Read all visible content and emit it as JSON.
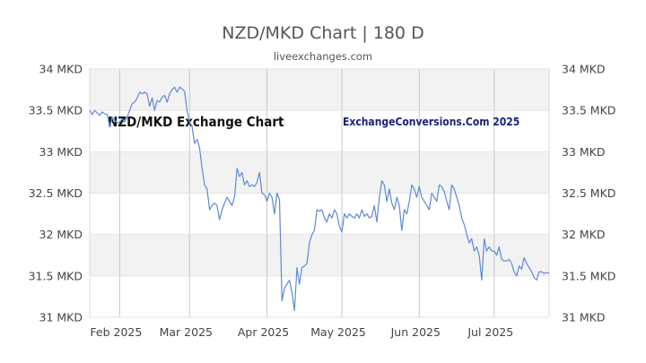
{
  "chart_data": {
    "type": "line",
    "title": "NZD/MKD Chart | 180 D",
    "subtitle": "liveexchanges.com",
    "watermark_left": "NZD/MKD Exchange Chart",
    "watermark_right": "ExchangeConversions.Com 2025",
    "ylim": [
      31,
      34
    ],
    "y_ticks": [
      {
        "value": 34,
        "label": "34 MKD"
      },
      {
        "value": 33.5,
        "label": "33.5 MKD"
      },
      {
        "value": 33,
        "label": "33 MKD"
      },
      {
        "value": 32.5,
        "label": "32.5 MKD"
      },
      {
        "value": 32,
        "label": "32 MKD"
      },
      {
        "value": 31.5,
        "label": "31.5 MKD"
      },
      {
        "value": 31,
        "label": "31 MKD"
      }
    ],
    "xlim": [
      "2025-01-20",
      "2025-07-23"
    ],
    "x_ticks": [
      {
        "date": "2025-02-01",
        "label": "Feb 2025"
      },
      {
        "date": "2025-03-01",
        "label": "Mar 2025"
      },
      {
        "date": "2025-04-01",
        "label": "Apr 2025"
      },
      {
        "date": "2025-05-01",
        "label": "May 2025"
      },
      {
        "date": "2025-06-01",
        "label": "Jun 2025"
      },
      {
        "date": "2025-07-01",
        "label": "Jul 2025"
      }
    ],
    "grid": true,
    "line_color": "#5b8ad6",
    "series": [
      {
        "points": [
          [
            "2025-01-20",
            33.5
          ],
          [
            "2025-01-21",
            33.45
          ],
          [
            "2025-01-22",
            33.5
          ],
          [
            "2025-01-23",
            33.47
          ],
          [
            "2025-01-24",
            33.44
          ],
          [
            "2025-01-25",
            33.48
          ],
          [
            "2025-01-26",
            33.46
          ],
          [
            "2025-01-27",
            33.45
          ],
          [
            "2025-01-28",
            33.3
          ],
          [
            "2025-01-29",
            33.42
          ],
          [
            "2025-01-30",
            33.38
          ],
          [
            "2025-01-31",
            33.35
          ],
          [
            "2025-02-01",
            33.36
          ],
          [
            "2025-02-02",
            33.4
          ],
          [
            "2025-02-03",
            33.36
          ],
          [
            "2025-02-04",
            33.42
          ],
          [
            "2025-02-05",
            33.5
          ],
          [
            "2025-02-06",
            33.58
          ],
          [
            "2025-02-07",
            33.6
          ],
          [
            "2025-02-08",
            33.65
          ],
          [
            "2025-02-09",
            33.72
          ],
          [
            "2025-02-10",
            33.7
          ],
          [
            "2025-02-11",
            33.72
          ],
          [
            "2025-02-12",
            33.7
          ],
          [
            "2025-02-13",
            33.55
          ],
          [
            "2025-02-14",
            33.65
          ],
          [
            "2025-02-15",
            33.5
          ],
          [
            "2025-02-16",
            33.62
          ],
          [
            "2025-02-17",
            33.6
          ],
          [
            "2025-02-18",
            33.66
          ],
          [
            "2025-02-19",
            33.68
          ],
          [
            "2025-02-20",
            33.6
          ],
          [
            "2025-02-21",
            33.7
          ],
          [
            "2025-02-22",
            33.75
          ],
          [
            "2025-02-23",
            33.78
          ],
          [
            "2025-02-24",
            33.72
          ],
          [
            "2025-02-25",
            33.78
          ],
          [
            "2025-02-26",
            33.76
          ],
          [
            "2025-02-27",
            33.73
          ],
          [
            "2025-02-28",
            33.5
          ],
          [
            "2025-03-01",
            33.35
          ],
          [
            "2025-03-02",
            33.3
          ],
          [
            "2025-03-03",
            33.1
          ],
          [
            "2025-03-04",
            33.15
          ],
          [
            "2025-03-05",
            33.05
          ],
          [
            "2025-03-06",
            32.8
          ],
          [
            "2025-03-07",
            32.6
          ],
          [
            "2025-03-08",
            32.55
          ],
          [
            "2025-03-09",
            32.3
          ],
          [
            "2025-03-10",
            32.35
          ],
          [
            "2025-03-11",
            32.38
          ],
          [
            "2025-03-12",
            32.35
          ],
          [
            "2025-03-13",
            32.18
          ],
          [
            "2025-03-14",
            32.3
          ],
          [
            "2025-03-15",
            32.38
          ],
          [
            "2025-03-16",
            32.45
          ],
          [
            "2025-03-17",
            32.4
          ],
          [
            "2025-03-18",
            32.35
          ],
          [
            "2025-03-19",
            32.45
          ],
          [
            "2025-03-20",
            32.8
          ],
          [
            "2025-03-21",
            32.7
          ],
          [
            "2025-03-22",
            32.75
          ],
          [
            "2025-03-23",
            32.6
          ],
          [
            "2025-03-24",
            32.65
          ],
          [
            "2025-03-25",
            32.58
          ],
          [
            "2025-03-26",
            32.6
          ],
          [
            "2025-03-27",
            32.58
          ],
          [
            "2025-03-28",
            32.63
          ],
          [
            "2025-03-29",
            32.75
          ],
          [
            "2025-03-30",
            32.5
          ],
          [
            "2025-03-31",
            32.48
          ],
          [
            "2025-04-01",
            32.4
          ],
          [
            "2025-04-02",
            32.5
          ],
          [
            "2025-04-03",
            32.45
          ],
          [
            "2025-04-04",
            32.25
          ],
          [
            "2025-04-05",
            32.5
          ],
          [
            "2025-04-06",
            32.42
          ],
          [
            "2025-04-07",
            31.2
          ],
          [
            "2025-04-08",
            31.35
          ],
          [
            "2025-04-09",
            31.4
          ],
          [
            "2025-04-10",
            31.45
          ],
          [
            "2025-04-11",
            31.3
          ],
          [
            "2025-04-12",
            31.08
          ],
          [
            "2025-04-13",
            31.6
          ],
          [
            "2025-04-14",
            31.4
          ],
          [
            "2025-04-15",
            31.6
          ],
          [
            "2025-04-16",
            31.62
          ],
          [
            "2025-04-17",
            31.65
          ],
          [
            "2025-04-18",
            31.9
          ],
          [
            "2025-04-19",
            32.0
          ],
          [
            "2025-04-20",
            32.05
          ],
          [
            "2025-04-21",
            32.3
          ],
          [
            "2025-04-22",
            32.28
          ],
          [
            "2025-04-23",
            32.3
          ],
          [
            "2025-04-24",
            32.2
          ],
          [
            "2025-04-25",
            32.15
          ],
          [
            "2025-04-26",
            32.25
          ],
          [
            "2025-04-27",
            32.2
          ],
          [
            "2025-04-28",
            32.3
          ],
          [
            "2025-04-29",
            32.25
          ],
          [
            "2025-04-30",
            32.1
          ],
          [
            "2025-05-01",
            32.03
          ],
          [
            "2025-05-02",
            32.25
          ],
          [
            "2025-05-03",
            32.2
          ],
          [
            "2025-05-04",
            32.25
          ],
          [
            "2025-05-05",
            32.22
          ],
          [
            "2025-05-06",
            32.2
          ],
          [
            "2025-05-07",
            32.25
          ],
          [
            "2025-05-08",
            32.2
          ],
          [
            "2025-05-09",
            32.3
          ],
          [
            "2025-05-10",
            32.22
          ],
          [
            "2025-05-11",
            32.25
          ],
          [
            "2025-05-12",
            32.2
          ],
          [
            "2025-05-13",
            32.22
          ],
          [
            "2025-05-14",
            32.35
          ],
          [
            "2025-05-15",
            32.15
          ],
          [
            "2025-05-16",
            32.45
          ],
          [
            "2025-05-17",
            32.65
          ],
          [
            "2025-05-18",
            32.6
          ],
          [
            "2025-05-19",
            32.4
          ],
          [
            "2025-05-20",
            32.55
          ],
          [
            "2025-05-21",
            32.38
          ],
          [
            "2025-05-22",
            32.3
          ],
          [
            "2025-05-23",
            32.45
          ],
          [
            "2025-05-24",
            32.35
          ],
          [
            "2025-05-25",
            32.05
          ],
          [
            "2025-05-26",
            32.3
          ],
          [
            "2025-05-27",
            32.25
          ],
          [
            "2025-05-28",
            32.4
          ],
          [
            "2025-05-29",
            32.6
          ],
          [
            "2025-05-30",
            32.55
          ],
          [
            "2025-05-31",
            32.45
          ],
          [
            "2025-06-01",
            32.58
          ],
          [
            "2025-06-02",
            32.45
          ],
          [
            "2025-06-03",
            32.4
          ],
          [
            "2025-06-04",
            32.35
          ],
          [
            "2025-06-05",
            32.3
          ],
          [
            "2025-06-06",
            32.5
          ],
          [
            "2025-06-07",
            32.45
          ],
          [
            "2025-06-08",
            32.4
          ],
          [
            "2025-06-09",
            32.6
          ],
          [
            "2025-06-10",
            32.58
          ],
          [
            "2025-06-11",
            32.52
          ],
          [
            "2025-06-12",
            32.4
          ],
          [
            "2025-06-13",
            32.3
          ],
          [
            "2025-06-14",
            32.6
          ],
          [
            "2025-06-15",
            32.55
          ],
          [
            "2025-06-16",
            32.45
          ],
          [
            "2025-06-17",
            32.35
          ],
          [
            "2025-06-18",
            32.2
          ],
          [
            "2025-06-19",
            32.12
          ],
          [
            "2025-06-20",
            32.0
          ],
          [
            "2025-06-21",
            31.9
          ],
          [
            "2025-06-22",
            31.95
          ],
          [
            "2025-06-23",
            31.8
          ],
          [
            "2025-06-24",
            31.85
          ],
          [
            "2025-06-25",
            31.75
          ],
          [
            "2025-06-26",
            31.45
          ],
          [
            "2025-06-27",
            31.95
          ],
          [
            "2025-06-28",
            31.8
          ],
          [
            "2025-06-29",
            31.85
          ],
          [
            "2025-06-30",
            31.8
          ],
          [
            "2025-07-01",
            31.8
          ],
          [
            "2025-07-02",
            31.75
          ],
          [
            "2025-07-03",
            31.85
          ],
          [
            "2025-07-04",
            31.7
          ],
          [
            "2025-07-05",
            31.68
          ],
          [
            "2025-07-06",
            31.68
          ],
          [
            "2025-07-07",
            31.7
          ],
          [
            "2025-07-08",
            31.65
          ],
          [
            "2025-07-09",
            31.55
          ],
          [
            "2025-07-10",
            31.5
          ],
          [
            "2025-07-11",
            31.62
          ],
          [
            "2025-07-12",
            31.58
          ],
          [
            "2025-07-13",
            31.72
          ],
          [
            "2025-07-14",
            31.65
          ],
          [
            "2025-07-15",
            31.6
          ],
          [
            "2025-07-16",
            31.55
          ],
          [
            "2025-07-17",
            31.48
          ],
          [
            "2025-07-18",
            31.45
          ],
          [
            "2025-07-19",
            31.55
          ],
          [
            "2025-07-20",
            31.55
          ],
          [
            "2025-07-21",
            31.53
          ],
          [
            "2025-07-22",
            31.54
          ],
          [
            "2025-07-23",
            31.53
          ]
        ]
      }
    ]
  }
}
